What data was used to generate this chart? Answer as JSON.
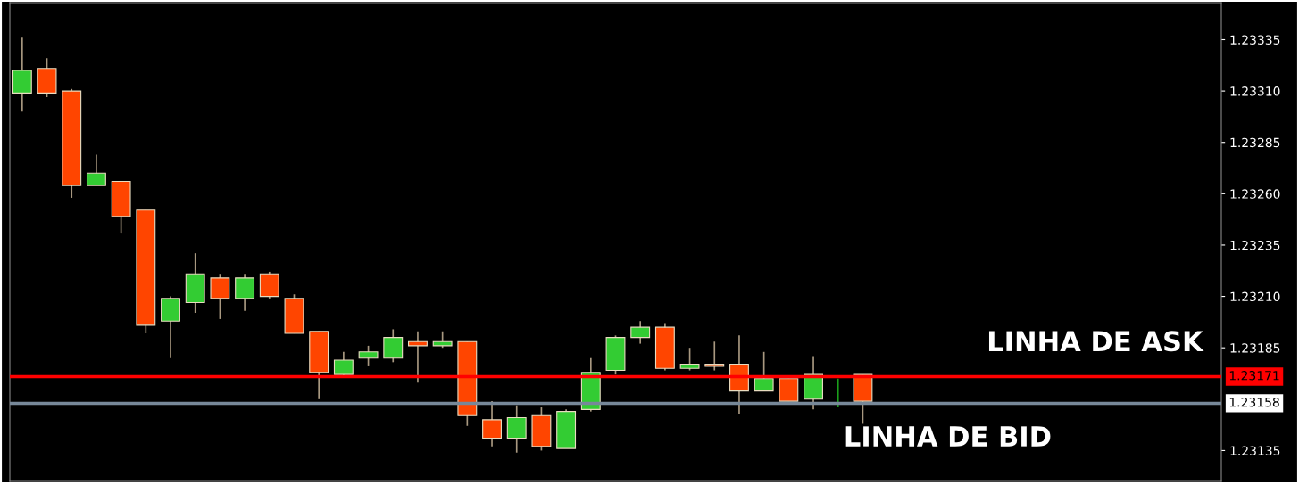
{
  "chart_data": {
    "type": "candlestick",
    "categories": [
      null,
      null,
      null,
      null,
      null,
      null,
      null,
      null,
      null,
      null,
      null,
      null,
      null,
      null,
      null,
      null,
      null,
      null,
      null,
      null,
      null,
      null,
      null,
      null,
      null,
      null,
      null,
      null,
      null,
      null,
      null,
      null,
      null,
      null,
      null,
      null,
      null,
      null,
      null,
      null,
      null,
      null,
      null,
      null,
      null,
      null,
      null,
      null,
      null
    ],
    "ohlc": [
      [
        1.23309,
        1.23336,
        1.233,
        1.2332
      ],
      [
        1.23321,
        1.23326,
        1.23307,
        1.23309
      ],
      [
        1.2331,
        1.23311,
        1.23258,
        1.23264
      ],
      [
        1.23264,
        1.23279,
        1.23264,
        1.2327
      ],
      [
        1.23266,
        1.23266,
        1.23241,
        1.23249
      ],
      [
        1.23252,
        1.23252,
        1.23192,
        1.23196
      ],
      [
        1.23198,
        1.2321,
        1.2318,
        1.23209
      ],
      [
        1.23207,
        1.23231,
        1.23202,
        1.23221
      ],
      [
        1.23219,
        1.23221,
        1.23199,
        1.23209
      ],
      [
        1.23209,
        1.23221,
        1.23203,
        1.23219
      ],
      [
        1.23221,
        1.23222,
        1.23209,
        1.2321
      ],
      [
        1.23209,
        1.23211,
        1.23192,
        1.23192
      ],
      [
        1.23193,
        1.23193,
        1.2316,
        1.23173
      ],
      [
        1.23172,
        1.23183,
        1.23171,
        1.23179
      ],
      [
        1.2318,
        1.23186,
        1.23176,
        1.23183
      ],
      [
        1.2318,
        1.23194,
        1.23178,
        1.2319
      ],
      [
        1.23188,
        1.23193,
        1.23168,
        1.23186
      ],
      [
        1.23186,
        1.23193,
        1.23185,
        1.23188
      ],
      [
        1.23188,
        1.23188,
        1.23147,
        1.23152
      ],
      [
        1.2315,
        1.23159,
        1.23137,
        1.23141
      ],
      [
        1.23141,
        1.23157,
        1.23134,
        1.23151
      ],
      [
        1.23152,
        1.23156,
        1.23135,
        1.23137
      ],
      [
        1.23136,
        1.23155,
        1.23136,
        1.23154
      ],
      [
        1.23155,
        1.2318,
        1.23154,
        1.23173
      ],
      [
        1.23174,
        1.23191,
        1.23172,
        1.2319
      ],
      [
        1.2319,
        1.23198,
        1.23187,
        1.23195
      ],
      [
        1.23195,
        1.23197,
        1.23174,
        1.23175
      ],
      [
        1.23175,
        1.23185,
        1.23174,
        1.23177
      ],
      [
        1.23177,
        1.23188,
        1.23174,
        1.23176
      ],
      [
        1.23177,
        1.23191,
        1.23153,
        1.23164
      ],
      [
        1.23164,
        1.23183,
        1.23164,
        1.2317
      ],
      [
        1.2317,
        1.2317,
        1.23159,
        1.23159
      ],
      [
        1.2316,
        1.23181,
        1.23155,
        1.23172
      ],
      [
        1.23158,
        1.2317,
        1.23156,
        1.23158
      ],
      [
        1.23172,
        1.23172,
        1.23148,
        1.23159
      ],
      null,
      null,
      null,
      null,
      null,
      null,
      null,
      null,
      null,
      null,
      null,
      null,
      null,
      null
    ],
    "colors": [
      "#33cc33",
      "#ff4500",
      "#ff4500",
      "#33cc33",
      "#ff4500",
      "#ff4500",
      "#33cc33",
      "#33cc33",
      "#ff4500",
      "#33cc33",
      "#ff4500",
      "#ff4500",
      "#ff4500",
      "#33cc33",
      "#33cc33",
      "#33cc33",
      "#ff4500",
      "#33cc33",
      "#ff4500",
      "#ff4500",
      "#33cc33",
      "#ff4500",
      "#33cc33",
      "#33cc33",
      "#33cc33",
      "#33cc33",
      "#ff4500",
      "#33cc33",
      "#ff4500",
      "#ff4500",
      "#33cc33",
      "#ff4500",
      "#33cc33",
      "#1a9e1a",
      "#ff4500",
      null,
      null,
      null,
      null,
      null,
      null,
      null,
      null,
      null,
      null,
      null,
      null,
      null,
      null
    ],
    "ylim": [
      1.2312,
      1.23353
    ],
    "yticks": [
      1.23135,
      1.23185,
      {
        "value": 1.2321,
        "label": "1.23210"
      },
      1.23235,
      {
        "value": 1.2326,
        "label": "1.23260"
      },
      1.23285,
      {
        "value": 1.2331,
        "label": "1.23310"
      },
      1.23335
    ],
    "ref_lines": [
      {
        "axis": "y",
        "value": 1.23171,
        "label": "1.23171",
        "color": "#ff0000",
        "line_style": "solid"
      },
      {
        "axis": "y",
        "value": 1.23158,
        "label": "1.23158",
        "color": "#778899",
        "line_style": "solid"
      }
    ],
    "annotations": [
      "LINHA DE ASK",
      "LINHA DE BID"
    ],
    "grid": false,
    "legend": false
  }
}
